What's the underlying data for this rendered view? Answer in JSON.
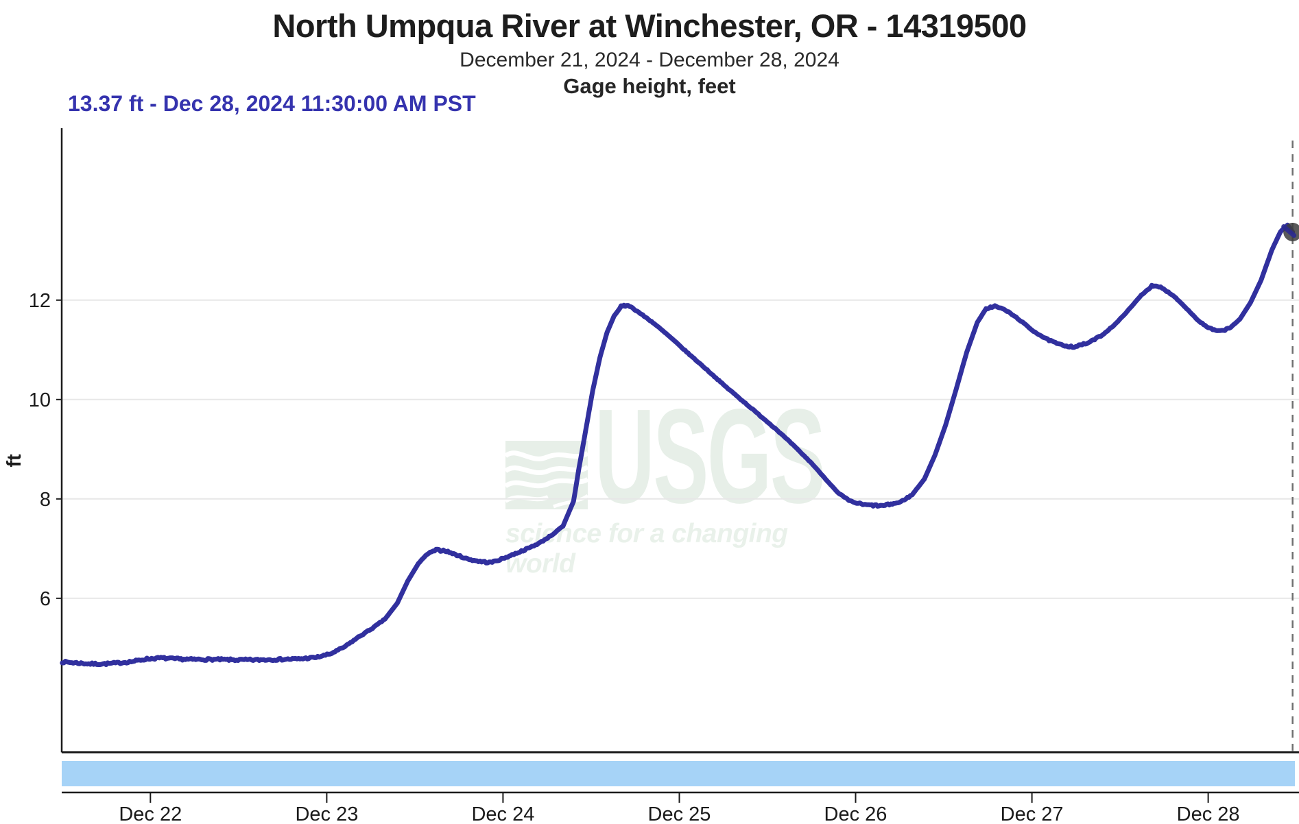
{
  "header": {
    "title": "North Umpqua River at Winchester, OR - 14319500",
    "date_range": "December 21, 2024 - December 28, 2024",
    "parameter": "Gage height, feet"
  },
  "reading": {
    "text": "13.37 ft - Dec 28, 2024 11:30:00 AM PST",
    "value_ft": "13.37",
    "timestamp": "Dec 28, 2024 11:30:00 AM PST"
  },
  "watermark": {
    "org": "USGS",
    "tagline": "science for a changing world",
    "icon": "usgs-wave-logo"
  },
  "colors": {
    "line_blue": "#31309e",
    "reading_text": "#3533ae",
    "range_bar": "#a6d3f7",
    "gridline": "#e7e7e7",
    "axis": "#1b1b1b",
    "tick_text": "#1b1b1b",
    "cursor_gray": "#3d3d3d",
    "cursor_dash": "#707070",
    "watermark_green": "#e7efe8",
    "background": "#ffffff"
  },
  "chart_data": {
    "type": "line",
    "title": "North Umpqua River at Winchester, OR - 14319500",
    "subtitle": "December 21, 2024 - December 28, 2024",
    "ylabel": "Gage height, feet",
    "unit": "ft",
    "x_unit": "day of December 2024, decimal (PST)",
    "x_domain": [
      21.497,
      28.515
    ],
    "y_domain": [
      2.9,
      15.46
    ],
    "grid": "horizontal-only",
    "y_gridlines": [
      6,
      8,
      10,
      12
    ],
    "x_ticks": [
      {
        "v": 22,
        "label": "Dec 22"
      },
      {
        "v": 23,
        "label": "Dec 23"
      },
      {
        "v": 24,
        "label": "Dec 24"
      },
      {
        "v": 25,
        "label": "Dec 25"
      },
      {
        "v": 26,
        "label": "Dec 26"
      },
      {
        "v": 27,
        "label": "Dec 27"
      },
      {
        "v": 28,
        "label": "Dec 28"
      }
    ],
    "cursor": {
      "x": 28.479,
      "y": 13.37,
      "label": "13.37 ft - Dec 28, 2024 11:30:00 AM PST"
    },
    "series": [
      {
        "name": "Gage height",
        "color": "#31309e",
        "points": [
          [
            21.5,
            4.72
          ],
          [
            21.58,
            4.7
          ],
          [
            21.66,
            4.68
          ],
          [
            21.74,
            4.68
          ],
          [
            21.82,
            4.7
          ],
          [
            21.9,
            4.73
          ],
          [
            21.98,
            4.78
          ],
          [
            22.06,
            4.8
          ],
          [
            22.14,
            4.78
          ],
          [
            22.24,
            4.77
          ],
          [
            22.36,
            4.77
          ],
          [
            22.48,
            4.76
          ],
          [
            22.6,
            4.76
          ],
          [
            22.72,
            4.77
          ],
          [
            22.84,
            4.78
          ],
          [
            22.94,
            4.81
          ],
          [
            23.02,
            4.88
          ],
          [
            23.1,
            5.02
          ],
          [
            23.18,
            5.22
          ],
          [
            23.26,
            5.4
          ],
          [
            23.33,
            5.58
          ],
          [
            23.4,
            5.9
          ],
          [
            23.46,
            6.35
          ],
          [
            23.52,
            6.7
          ],
          [
            23.57,
            6.89
          ],
          [
            23.62,
            6.97
          ],
          [
            23.67,
            6.96
          ],
          [
            23.73,
            6.88
          ],
          [
            23.8,
            6.79
          ],
          [
            23.87,
            6.74
          ],
          [
            23.93,
            6.72
          ],
          [
            24.0,
            6.8
          ],
          [
            24.07,
            6.9
          ],
          [
            24.14,
            7.0
          ],
          [
            24.21,
            7.12
          ],
          [
            24.28,
            7.28
          ],
          [
            24.34,
            7.45
          ],
          [
            24.4,
            7.95
          ],
          [
            24.43,
            8.6
          ],
          [
            24.47,
            9.4
          ],
          [
            24.51,
            10.2
          ],
          [
            24.55,
            10.85
          ],
          [
            24.59,
            11.35
          ],
          [
            24.63,
            11.68
          ],
          [
            24.67,
            11.87
          ],
          [
            24.71,
            11.9
          ],
          [
            24.76,
            11.78
          ],
          [
            24.85,
            11.55
          ],
          [
            24.95,
            11.25
          ],
          [
            25.05,
            10.93
          ],
          [
            25.15,
            10.62
          ],
          [
            25.25,
            10.3
          ],
          [
            25.35,
            10.0
          ],
          [
            25.45,
            9.7
          ],
          [
            25.55,
            9.4
          ],
          [
            25.65,
            9.07
          ],
          [
            25.75,
            8.72
          ],
          [
            25.83,
            8.4
          ],
          [
            25.9,
            8.12
          ],
          [
            25.97,
            7.95
          ],
          [
            26.05,
            7.88
          ],
          [
            26.15,
            7.86
          ],
          [
            26.25,
            7.93
          ],
          [
            26.32,
            8.08
          ],
          [
            26.39,
            8.4
          ],
          [
            26.45,
            8.88
          ],
          [
            26.51,
            9.48
          ],
          [
            26.57,
            10.2
          ],
          [
            26.63,
            10.95
          ],
          [
            26.69,
            11.55
          ],
          [
            26.74,
            11.83
          ],
          [
            26.79,
            11.88
          ],
          [
            26.85,
            11.8
          ],
          [
            26.92,
            11.63
          ],
          [
            27.0,
            11.4
          ],
          [
            27.08,
            11.22
          ],
          [
            27.16,
            11.1
          ],
          [
            27.24,
            11.06
          ],
          [
            27.32,
            11.14
          ],
          [
            27.4,
            11.3
          ],
          [
            27.48,
            11.54
          ],
          [
            27.56,
            11.85
          ],
          [
            27.62,
            12.1
          ],
          [
            27.68,
            12.28
          ],
          [
            27.73,
            12.26
          ],
          [
            27.8,
            12.1
          ],
          [
            27.87,
            11.86
          ],
          [
            27.94,
            11.6
          ],
          [
            28.0,
            11.44
          ],
          [
            28.06,
            11.37
          ],
          [
            28.12,
            11.43
          ],
          [
            28.18,
            11.62
          ],
          [
            28.24,
            11.95
          ],
          [
            28.3,
            12.4
          ],
          [
            28.36,
            13.0
          ],
          [
            28.41,
            13.38
          ],
          [
            28.45,
            13.51
          ],
          [
            28.479,
            13.37
          ]
        ]
      }
    ]
  }
}
